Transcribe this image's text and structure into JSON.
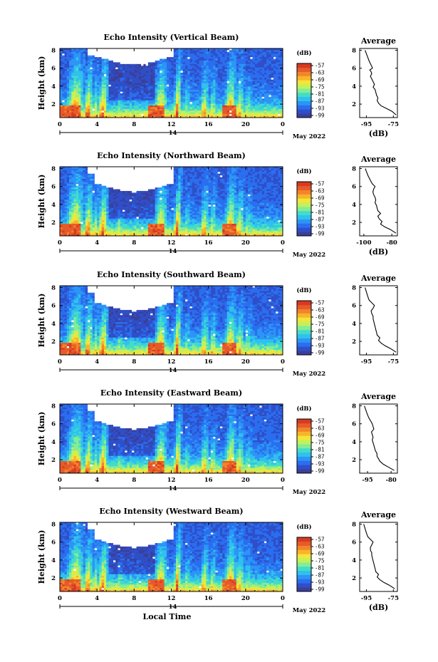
{
  "figure": {
    "bottom_xlabel": "Local Time",
    "date_label": "May 2022",
    "day_label": "14",
    "height_label": "Height (km)",
    "avg_title": "Average",
    "avg_xlabel": "(dB)",
    "cb_unit": "(dB)",
    "colormap": [
      "#3b3f9a",
      "#2f4fc8",
      "#2a6ef0",
      "#2c95f5",
      "#2fc1ee",
      "#43dcc7",
      "#86ec93",
      "#c4f05c",
      "#f3e53a",
      "#f7b52b",
      "#f2852a",
      "#e65b2a",
      "#d63a22"
    ]
  },
  "chart_data": [
    {
      "type": "heatmap",
      "title": "Echo Intensity (Vertical Beam)",
      "xlabel": "",
      "ylabel": "Height (km)",
      "x_ticks": [
        "0",
        "4",
        "8",
        "12",
        "16",
        "20",
        "0"
      ],
      "y_ticks": [
        "2",
        "4",
        "6",
        "8"
      ],
      "xlim": [
        0,
        24
      ],
      "ylim": [
        0.5,
        8.2
      ],
      "colorbar": {
        "unit": "(dB)",
        "ticks": [
          "-57",
          "-63",
          "-69",
          "-75",
          "-81",
          "-87",
          "-93",
          "-99"
        ]
      },
      "average_profile": {
        "title": "Average",
        "xlabel": "(dB)",
        "x_ticks": [
          "-95",
          "-75"
        ],
        "xlim": [
          -100,
          -72
        ],
        "y_ticks": [
          "2",
          "4",
          "6",
          "8"
        ],
        "height": [
          0.8,
          1.2,
          1.5,
          1.8,
          2.1,
          2.4,
          2.7,
          3.0,
          3.3,
          3.6,
          3.9,
          4.2,
          4.5,
          4.8,
          5.1,
          5.4,
          5.6,
          5.8,
          6.0,
          6.2,
          6.5,
          6.8,
          7.2,
          7.6,
          8.0
        ],
        "db": [
          -73,
          -76,
          -80,
          -84,
          -86,
          -87,
          -86.5,
          -87.5,
          -88,
          -88.5,
          -90,
          -89,
          -90,
          -91,
          -92,
          -91,
          -91.5,
          -92.5,
          -90.5,
          -91,
          -92,
          -93,
          -94,
          -95,
          -96
        ]
      }
    },
    {
      "type": "heatmap",
      "title": "Echo Intensity (Northward Beam)",
      "xlabel": "",
      "ylabel": "Height (km)",
      "x_ticks": [
        "0",
        "4",
        "8",
        "12",
        "16",
        "20",
        "0"
      ],
      "y_ticks": [
        "2",
        "4",
        "6",
        "8"
      ],
      "xlim": [
        0,
        24
      ],
      "ylim": [
        0.5,
        8.2
      ],
      "colorbar": {
        "unit": "(dB)",
        "ticks": [
          "-57",
          "-63",
          "-69",
          "-75",
          "-81",
          "-87",
          "-93",
          "-99"
        ]
      },
      "average_profile": {
        "title": "Average",
        "xlabel": "(dB)",
        "x_ticks": [
          "-100",
          "-80"
        ],
        "xlim": [
          -103,
          -76
        ],
        "y_ticks": [
          "2",
          "4",
          "6",
          "8"
        ],
        "height": [
          0.8,
          1.2,
          1.5,
          1.8,
          2.1,
          2.4,
          2.7,
          3.0,
          3.3,
          3.6,
          3.9,
          4.2,
          4.5,
          4.8,
          5.1,
          5.4,
          5.7,
          6.0,
          6.3,
          6.6,
          6.9,
          7.2,
          7.6,
          8.0
        ],
        "db": [
          -77,
          -81,
          -85,
          -88,
          -87,
          -89,
          -90,
          -88,
          -90,
          -90.5,
          -91,
          -92,
          -91.5,
          -92,
          -93,
          -93.5,
          -93,
          -92,
          -94,
          -95,
          -96,
          -97,
          -98,
          -99
        ]
      }
    },
    {
      "type": "heatmap",
      "title": "Echo Intensity (Southward Beam)",
      "xlabel": "",
      "ylabel": "Height (km)",
      "x_ticks": [
        "0",
        "4",
        "8",
        "12",
        "16",
        "20",
        "0"
      ],
      "y_ticks": [
        "2",
        "4",
        "6",
        "8"
      ],
      "xlim": [
        0,
        24
      ],
      "ylim": [
        0.5,
        8.2
      ],
      "colorbar": {
        "unit": "(dB)",
        "ticks": [
          "-57",
          "-63",
          "-69",
          "-75",
          "-81",
          "-87",
          "-93",
          "-99"
        ]
      },
      "average_profile": {
        "title": "Average",
        "xlabel": "",
        "x_ticks": [
          "-95",
          "-75"
        ],
        "xlim": [
          -100,
          -72
        ],
        "y_ticks": [
          "2",
          "4",
          "6",
          "8"
        ],
        "height": [
          0.8,
          1.2,
          1.5,
          1.8,
          2.1,
          2.4,
          2.7,
          3.0,
          3.3,
          3.6,
          3.9,
          4.2,
          4.5,
          4.8,
          5.1,
          5.4,
          5.7,
          6.0,
          6.3,
          6.6,
          7.0,
          7.5,
          8.0
        ],
        "db": [
          -73,
          -77,
          -81,
          -84,
          -86,
          -85,
          -87,
          -87.5,
          -88,
          -88.5,
          -89,
          -89.5,
          -90,
          -90,
          -91,
          -91.5,
          -90,
          -89,
          -91,
          -93,
          -94,
          -95,
          -96
        ]
      }
    },
    {
      "type": "heatmap",
      "title": "Echo Intensity (Eastward Beam)",
      "xlabel": "",
      "ylabel": "Height (km)",
      "x_ticks": [
        "0",
        "4",
        "8",
        "12",
        "16",
        "20",
        "0"
      ],
      "y_ticks": [
        "2",
        "4",
        "6",
        "8"
      ],
      "xlim": [
        0,
        24
      ],
      "ylim": [
        0.5,
        8.2
      ],
      "colorbar": {
        "unit": "(dB)",
        "ticks": [
          "-57",
          "-63",
          "-69",
          "-75",
          "-81",
          "-87",
          "-93",
          "-99"
        ]
      },
      "average_profile": {
        "title": "Average",
        "xlabel": "",
        "x_ticks": [
          "-95",
          "-80"
        ],
        "xlim": [
          -100,
          -76
        ],
        "y_ticks": [
          "2",
          "4",
          "6",
          "8"
        ],
        "height": [
          0.8,
          1.2,
          1.5,
          1.8,
          2.1,
          2.4,
          2.7,
          3.0,
          3.3,
          3.6,
          3.9,
          4.2,
          4.5,
          4.8,
          5.1,
          5.4,
          5.7,
          6.0,
          6.3,
          6.6,
          7.0,
          7.5,
          8.0
        ],
        "db": [
          -78,
          -82,
          -85,
          -87,
          -88,
          -89,
          -89,
          -90,
          -90.5,
          -91,
          -91.5,
          -92,
          -91.5,
          -92,
          -92.5,
          -91,
          -91.5,
          -92,
          -93,
          -94,
          -95,
          -96,
          -97
        ]
      }
    },
    {
      "type": "heatmap",
      "title": "Echo Intensity (Westward Beam)",
      "xlabel": "Local Time",
      "ylabel": "Height (km)",
      "x_ticks": [
        "0",
        "4",
        "8",
        "12",
        "16",
        "20",
        "0"
      ],
      "y_ticks": [
        "2",
        "4",
        "6",
        "8"
      ],
      "xlim": [
        0,
        24
      ],
      "ylim": [
        0.5,
        8.2
      ],
      "colorbar": {
        "unit": "(dB)",
        "ticks": [
          "-57",
          "-63",
          "-69",
          "-75",
          "-81",
          "-87",
          "-93",
          "-99"
        ]
      },
      "average_profile": {
        "title": "Average",
        "xlabel": "(dB)",
        "x_ticks": [
          "-95",
          "-75"
        ],
        "xlim": [
          -100,
          -72
        ],
        "y_ticks": [
          "2",
          "4",
          "6",
          "8"
        ],
        "height": [
          0.8,
          1.2,
          1.5,
          1.8,
          2.1,
          2.4,
          2.7,
          3.0,
          3.3,
          3.6,
          3.9,
          4.2,
          4.5,
          4.8,
          5.1,
          5.4,
          5.7,
          6.0,
          6.3,
          6.6,
          7.0,
          7.5,
          8.0
        ],
        "db": [
          -74,
          -78,
          -82,
          -85,
          -87,
          -86,
          -88,
          -88.5,
          -89,
          -89.5,
          -90,
          -90.5,
          -91,
          -91,
          -92,
          -92,
          -91,
          -90,
          -92,
          -94,
          -95,
          -96,
          -97
        ]
      }
    }
  ]
}
